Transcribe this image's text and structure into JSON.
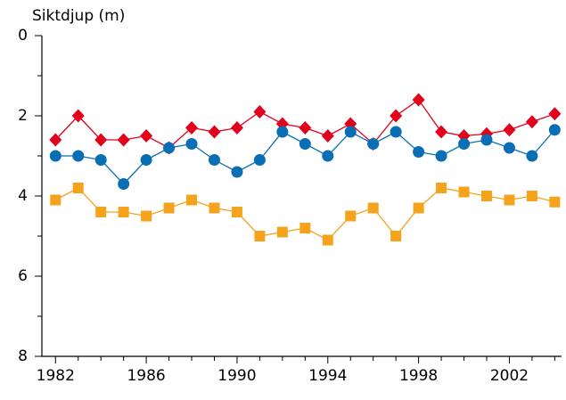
{
  "chart_data": {
    "type": "line",
    "y_label": "Siktdjup (m)",
    "x": [
      1982,
      1983,
      1984,
      1985,
      1986,
      1987,
      1988,
      1989,
      1990,
      1991,
      1992,
      1993,
      1994,
      1995,
      1996,
      1997,
      1998,
      1999,
      2000,
      2001,
      2002,
      2003,
      2004
    ],
    "series": [
      {
        "color": "#e2001a",
        "marker": "diamond",
        "values": [
          2.6,
          2.0,
          2.6,
          2.6,
          2.5,
          2.8,
          2.3,
          2.4,
          2.3,
          1.9,
          2.2,
          2.3,
          2.5,
          2.2,
          2.7,
          2.0,
          1.6,
          2.4,
          2.5,
          2.45,
          2.35,
          2.15,
          1.95
        ]
      },
      {
        "color": "#0a6eb4",
        "marker": "circle",
        "values": [
          3.0,
          3.0,
          3.1,
          3.7,
          3.1,
          2.8,
          2.7,
          3.1,
          3.4,
          3.1,
          2.4,
          2.7,
          3.0,
          2.4,
          2.7,
          2.4,
          2.9,
          3.0,
          2.7,
          2.6,
          2.8,
          3.0,
          2.35
        ]
      },
      {
        "color": "#f5a21c",
        "marker": "square",
        "values": [
          4.1,
          3.8,
          4.4,
          4.4,
          4.5,
          4.3,
          4.1,
          4.3,
          4.4,
          5.0,
          4.9,
          4.8,
          5.1,
          4.5,
          4.3,
          5.0,
          4.3,
          3.8,
          3.9,
          4.0,
          4.1,
          4.0,
          4.15
        ]
      }
    ],
    "xlim": [
      1981.4,
      2004.3
    ],
    "xticks": [
      1982,
      1986,
      1990,
      1994,
      1998,
      2002
    ],
    "xminorticks": [
      1983,
      1984,
      1985,
      1987,
      1988,
      1989,
      1991,
      1992,
      1993,
      1995,
      1996,
      1997,
      1999,
      2000,
      2001,
      2003,
      2004
    ],
    "ylim": [
      0,
      8
    ],
    "yticks": [
      0,
      2,
      4,
      6,
      8
    ],
    "yminorticks": [
      1,
      3,
      5,
      7
    ],
    "y_inverted": true
  }
}
